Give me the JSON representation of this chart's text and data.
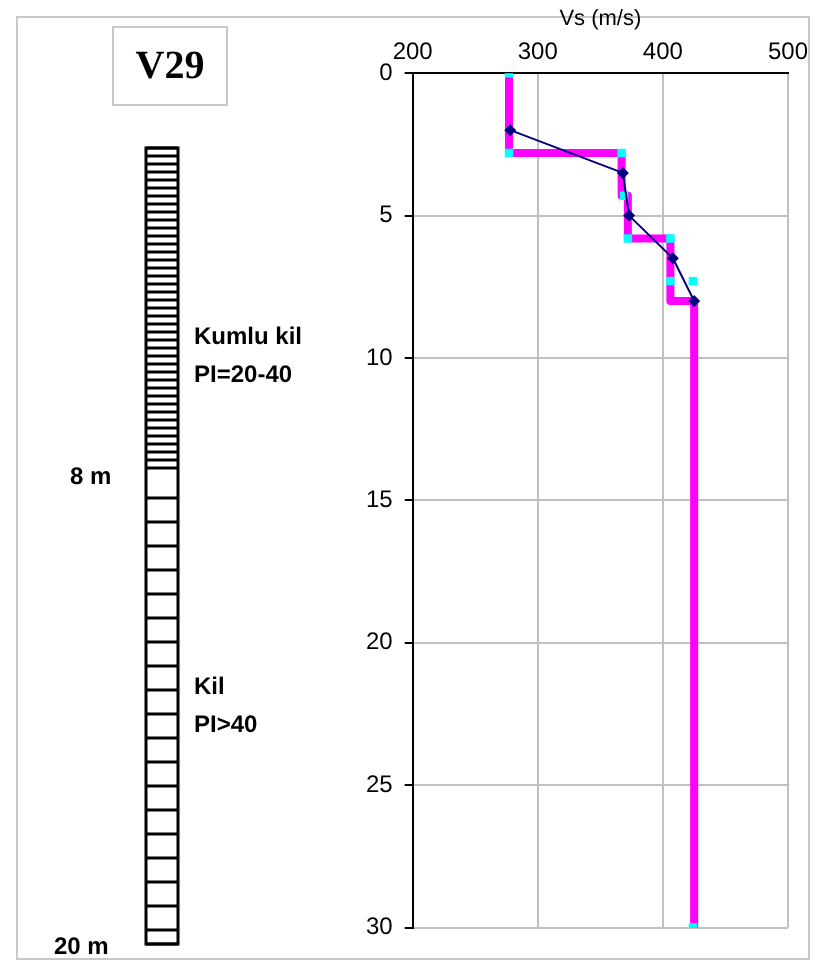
{
  "chart_data": {
    "type": "line",
    "title": "V29",
    "xlabel": "Vs (m/s)",
    "xlim": [
      200,
      500
    ],
    "xticks": [
      200,
      300,
      400,
      500
    ],
    "ylim": [
      30,
      0
    ],
    "yticks": [
      0,
      5,
      10,
      15,
      20,
      25,
      30
    ],
    "grid": true,
    "legend": false,
    "series": [
      {
        "color": "#ff00ff",
        "marker": "none",
        "x": [
          277,
          277,
          367,
          367,
          372,
          372,
          406,
          406,
          425,
          425
        ],
        "values": [
          0,
          2.8,
          2.8,
          4.3,
          4.3,
          5.8,
          5.8,
          8.0,
          8.0,
          30
        ]
      },
      {
        "type": "scatter",
        "color": "#00ffff",
        "marker": "square",
        "x": [
          277,
          277,
          367,
          369,
          372,
          406,
          406,
          424,
          424
        ],
        "values": [
          0,
          2.8,
          2.8,
          4.3,
          5.8,
          5.8,
          7.3,
          7.3,
          30
        ]
      },
      {
        "color": "#000080",
        "marker": "diamond",
        "x": [
          278,
          368,
          373,
          408,
          425
        ],
        "values": [
          2.0,
          3.5,
          5.0,
          6.5,
          8.0
        ]
      }
    ],
    "annotations": [
      "Kumlu kil",
      "PI=20-40",
      "8 m",
      "Kil",
      "PI>40",
      "20 m"
    ]
  }
}
